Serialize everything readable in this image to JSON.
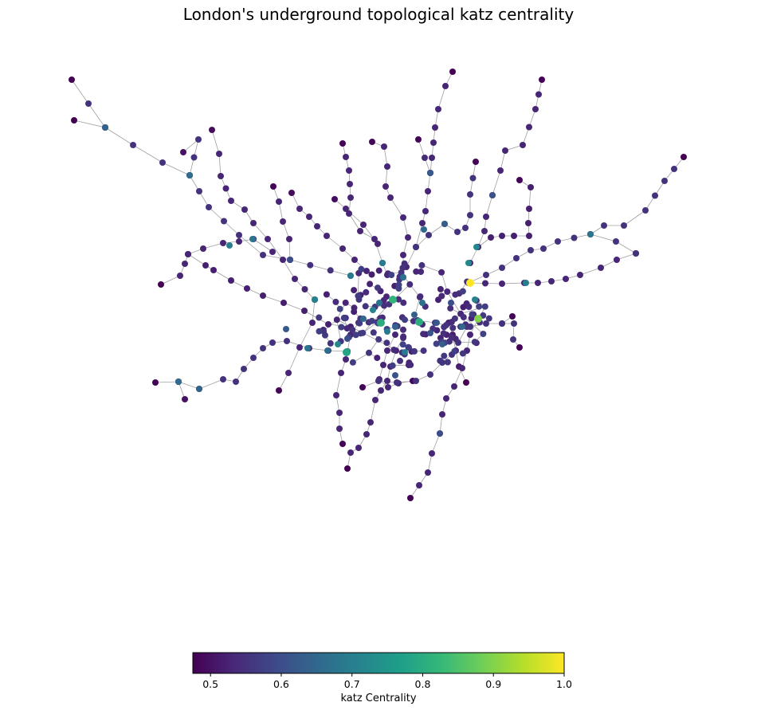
{
  "chart_data": {
    "type": "network",
    "title": "London's underground topological katz centrality",
    "node_color_by": "katz Centrality",
    "colormap": "viridis",
    "colorbar": {
      "label": "katz Centrality",
      "range": [
        0.475,
        1.0
      ],
      "ticks": [
        0.5,
        0.6,
        0.7,
        0.8,
        0.9,
        1.0
      ],
      "tick_labels": [
        "0.5",
        "0.6",
        "0.7",
        "0.8",
        "0.9",
        "1.0"
      ],
      "orientation": "horizontal",
      "placement": "bottom"
    },
    "edge_color": "#a0a0a0",
    "highlighted_nodes": [
      {
        "value": 1.0
      },
      {
        "value": 0.9
      },
      {
        "value": 0.82
      },
      {
        "value": 0.8
      },
      {
        "value": 0.8
      },
      {
        "value": 0.78
      }
    ]
  }
}
